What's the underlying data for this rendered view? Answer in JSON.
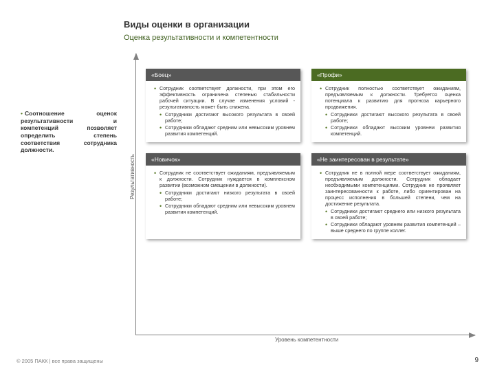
{
  "header": {
    "title": "Виды оценки в организации",
    "subtitle": "Оценка результативности и компетентности"
  },
  "side_note": "Соотношение оценок результативности и компетенций позволяет определить степень соответствия сотрудника должности.",
  "axes": {
    "y_label": "Результативность",
    "x_label": "Уровень компетентности"
  },
  "colors": {
    "header_grey": "#575757",
    "header_green": "#4b6b22",
    "bullet_olive": "#5a7a2a",
    "subtitle": "#406020",
    "shadow": "rgba(0,0,0,0.35)"
  },
  "cards": {
    "top_left": {
      "title": "«Боец»",
      "header_color": "#575757",
      "intro": "Сотрудник соответствует должности, при этом его эффективность ограничена степенью стабильности рабочей ситуации. В случае изменения условий - результативность может быть снижена.",
      "b1": "Сотрудники достигают высокого результата в своей работе;",
      "b2": "Сотрудники обладают средним или невысоким уровнем развития компетенций."
    },
    "top_right": {
      "title": "«Профи»",
      "header_color": "#4b6b22",
      "intro": "Сотрудник полностью соответствует ожиданиям, предъявляемым к должности. Требуется оценка потенциала к развитию для прогноза карьерного продвижения.",
      "b1": "Сотрудники достигают высокого результата в своей работе;",
      "b2": "Сотрудники обладают высоким уровнем развития компетенций."
    },
    "bottom_left": {
      "title": "«Новичок»",
      "header_color": "#575757",
      "intro": "Сотрудник не соответствует ожиданиям, предъявляемым к должности. Сотрудник нуждается в комплексном развитии (возможном смещении в должности).",
      "b1": "Сотрудники достигают низкого результата в своей работе;",
      "b2": "Сотрудники обладают средним или невысоким уровнем развития компетенций."
    },
    "bottom_right": {
      "title": "«Не заинтересован в результате»",
      "header_color": "#575757",
      "intro": "Сотрудник не в полной мере соответствует ожиданиям, предъявляемым должности. Сотрудник обладает необходимыми компетенциями. Сотрудник не проявляет заинтересованности к работе, либо ориентирован на процесс исполнения в большей степени, чем на достижение результата.",
      "b1": "Сотрудники достигают среднего или низкого результата в своей работе;",
      "b2": "Сотрудники обладают уровнем развития компетенций – выше среднего по группе коллег."
    }
  },
  "footer": {
    "copyright": "© 2005 ПАКК | все права защищены",
    "page": "9"
  }
}
